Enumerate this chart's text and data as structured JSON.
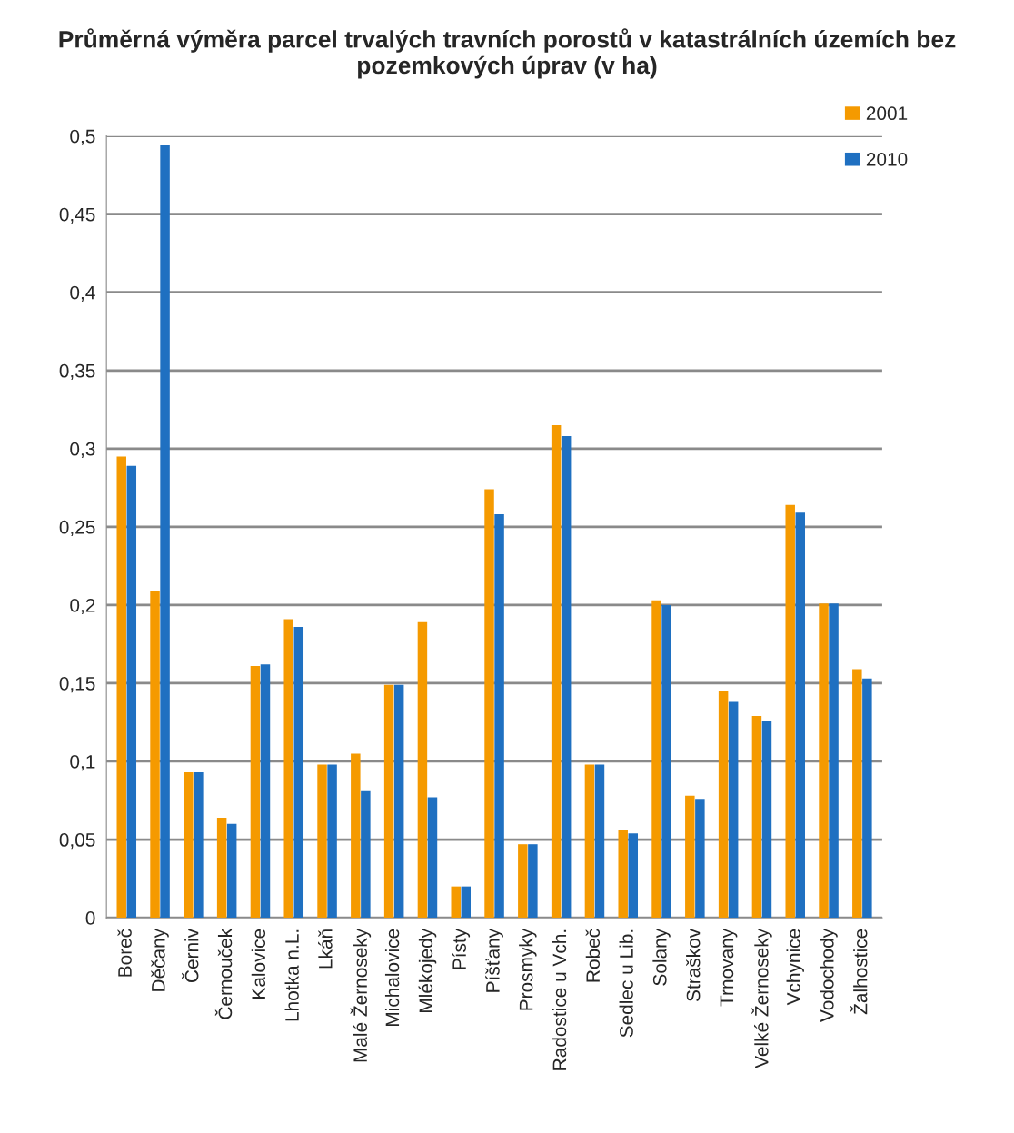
{
  "chart_data": {
    "type": "bar",
    "title": "Průměrná výměra parcel trvalých travních porostů v katastrálních územích bez pozemkových úprav (v ha)",
    "categories": [
      "Boreč",
      "Děčany",
      "Černiv",
      "Černouček",
      "Kalovice",
      "Lhotka n.L.",
      "Lkáň",
      "Malé Žernoseky",
      "Michalovice",
      "Mlékojedy",
      "Písty",
      "Píšťany",
      "Prosmyky",
      "Radostice u Vch.",
      "Robeč",
      "Sedlec u Lib.",
      "Solany",
      "Straškov",
      "Trnovany",
      "Velké Žernoseky",
      "Vchynice",
      "Vodochody",
      "Žalhostice"
    ],
    "series": [
      {
        "name": "2001",
        "color": "#f59a00",
        "values": [
          0.295,
          0.209,
          0.093,
          0.064,
          0.161,
          0.191,
          0.098,
          0.105,
          0.149,
          0.189,
          0.02,
          0.274,
          0.047,
          0.315,
          0.098,
          0.056,
          0.203,
          0.078,
          0.145,
          0.129,
          0.264,
          0.201,
          0.159
        ]
      },
      {
        "name": "2010",
        "color": "#1f70c1",
        "values": [
          0.289,
          0.494,
          0.093,
          0.06,
          0.162,
          0.186,
          0.098,
          0.081,
          0.149,
          0.077,
          0.02,
          0.258,
          0.047,
          0.308,
          0.098,
          0.054,
          0.2,
          0.076,
          0.138,
          0.126,
          0.259,
          0.201,
          0.153
        ]
      }
    ],
    "ylim": [
      0,
      0.5
    ],
    "yticks": [
      0,
      {
        "value": 0.05,
        "label": "0,05"
      },
      {
        "value": 0.1,
        "label": "0,1"
      },
      {
        "value": 0.15,
        "label": "0,15"
      },
      {
        "value": 0.2,
        "label": "0,2"
      },
      {
        "value": 0.25,
        "label": "0,25"
      },
      {
        "value": 0.3,
        "label": "0,3"
      },
      {
        "value": 0.35,
        "label": "0,35"
      },
      {
        "value": 0.4,
        "label": "0,4"
      },
      {
        "value": 0.45,
        "label": "0,45"
      },
      {
        "value": 0.5,
        "label": "0,5"
      }
    ],
    "grid": "y",
    "legend": "top right"
  }
}
